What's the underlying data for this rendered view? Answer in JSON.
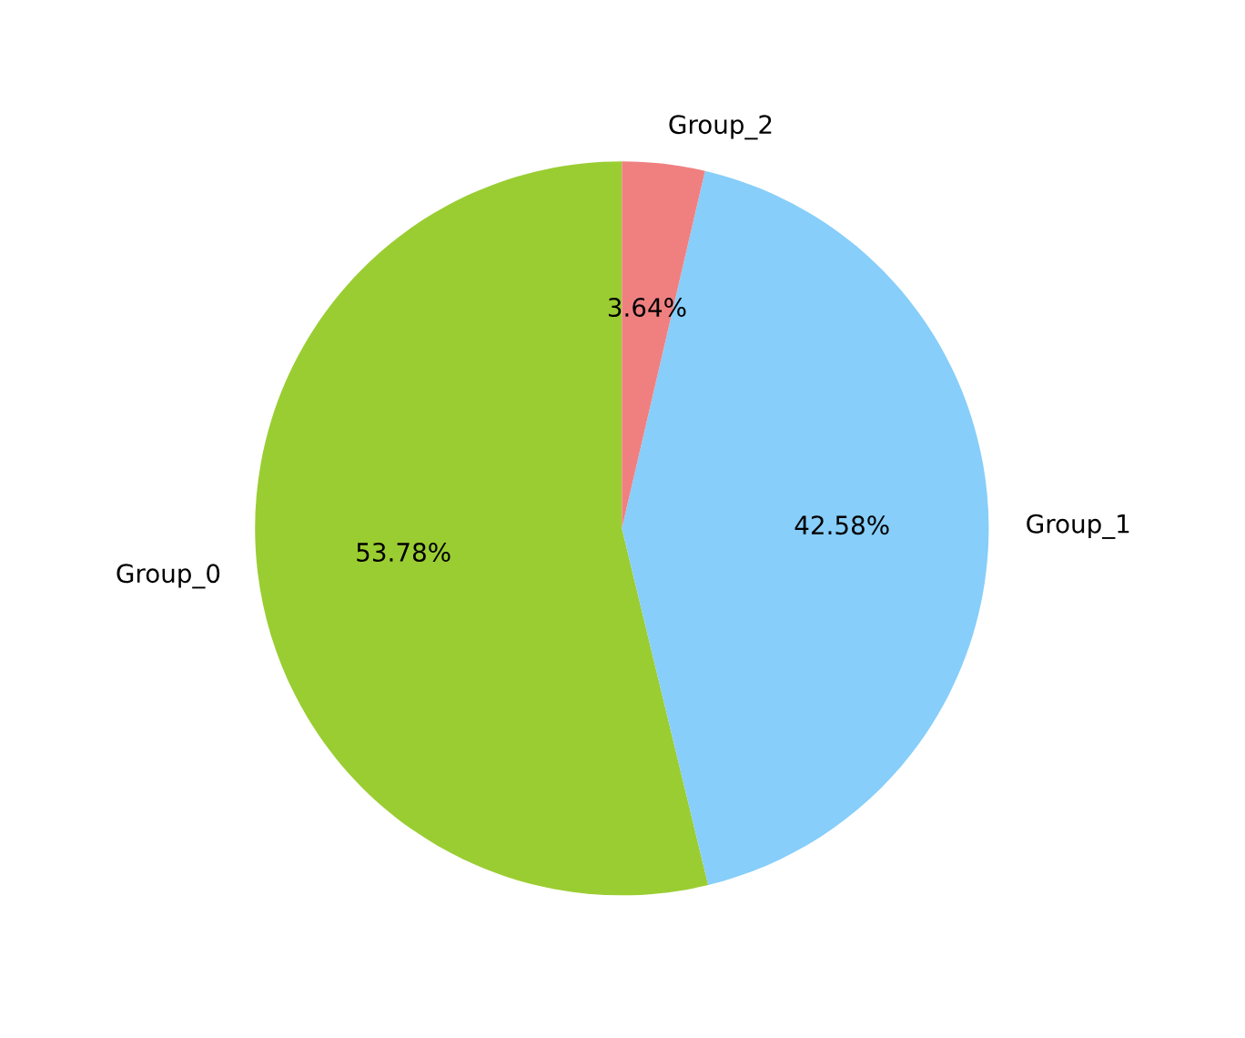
{
  "chart_data": {
    "type": "pie",
    "categories": [
      "Group_0",
      "Group_1",
      "Group_2"
    ],
    "values": [
      53.78,
      42.58,
      3.64
    ],
    "value_labels": [
      "53.78%",
      "42.58%",
      "3.64%"
    ],
    "colors": [
      "#9acd32",
      "#87cefa",
      "#f08080"
    ],
    "legend": false
  }
}
